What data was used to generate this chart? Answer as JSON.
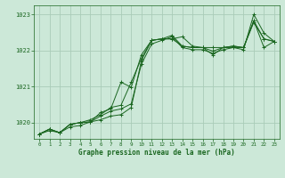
{
  "bg_color": "#cce8d8",
  "grid_color": "#aaccb8",
  "line_color": "#1a6620",
  "title": "Graphe pression niveau de la mer (hPa)",
  "xlim": [
    -0.5,
    23.5
  ],
  "ylim": [
    1019.55,
    1023.25
  ],
  "yticks": [
    1020,
    1021,
    1022,
    1023
  ],
  "xticks": [
    0,
    1,
    2,
    3,
    4,
    5,
    6,
    7,
    8,
    9,
    10,
    11,
    12,
    13,
    14,
    15,
    16,
    17,
    18,
    19,
    20,
    21,
    22,
    23
  ],
  "series": [
    [
      1019.68,
      1019.82,
      1019.72,
      1019.95,
      1020.0,
      1020.02,
      1020.08,
      1020.18,
      1020.22,
      1020.42,
      1021.72,
      1022.28,
      1022.32,
      1022.32,
      1022.38,
      1022.12,
      1022.08,
      1022.08,
      1022.08,
      1022.12,
      1022.08,
      1022.78,
      1022.32,
      1022.25
    ],
    [
      1019.68,
      1019.82,
      1019.72,
      1019.95,
      1020.0,
      1020.02,
      1020.28,
      1020.38,
      1021.12,
      1020.98,
      1021.88,
      1022.28,
      1022.32,
      1022.42,
      1022.12,
      1022.08,
      1022.08,
      1021.88,
      1022.08,
      1022.08,
      1022.08,
      1022.82,
      1022.08,
      1022.25
    ],
    [
      1019.68,
      1019.82,
      1019.72,
      1019.95,
      1020.0,
      1020.08,
      1020.22,
      1020.42,
      1020.48,
      1021.12,
      1021.78,
      1022.28,
      1022.32,
      1022.32,
      1022.12,
      1022.08,
      1022.08,
      1021.98,
      1022.08,
      1022.12,
      1022.08,
      1022.82,
      1022.32,
      1022.25
    ],
    [
      1019.68,
      1019.78,
      1019.72,
      1019.88,
      1019.92,
      1020.02,
      1020.18,
      1020.32,
      1020.38,
      1020.52,
      1021.62,
      1022.18,
      1022.28,
      1022.38,
      1022.08,
      1022.02,
      1022.02,
      1021.92,
      1022.02,
      1022.08,
      1022.02,
      1023.0,
      1022.48,
      1022.25
    ]
  ]
}
